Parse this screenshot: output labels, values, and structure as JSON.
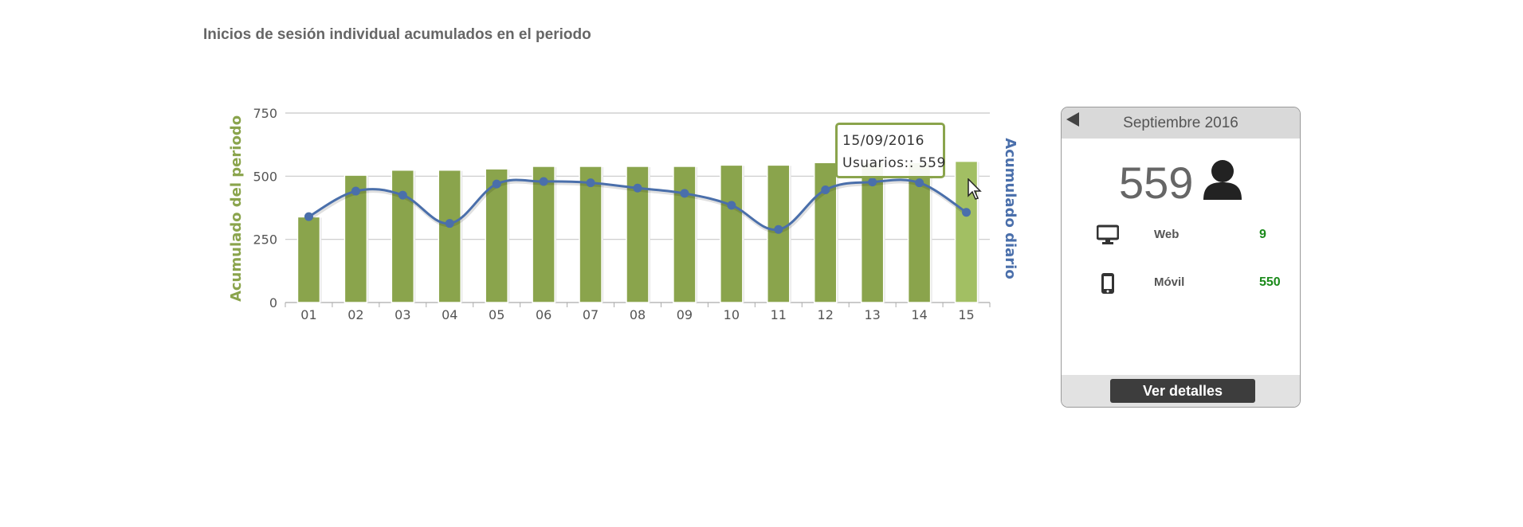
{
  "page": {
    "title": "Inicios de sesión individual acumulados en el periodo"
  },
  "chart_data": {
    "type": "bar",
    "categories": [
      "01",
      "02",
      "03",
      "04",
      "05",
      "06",
      "07",
      "08",
      "09",
      "10",
      "11",
      "12",
      "13",
      "14",
      "15"
    ],
    "series": [
      {
        "name": "Acumulado del periodo",
        "type": "bar",
        "axis": "left",
        "values": [
          339,
          504,
          524,
          524,
          529,
          539,
          539,
          539,
          539,
          544,
          544,
          554,
          554,
          554,
          559
        ]
      },
      {
        "name": "Acumulado diario",
        "type": "line",
        "axis": "right",
        "values": [
          340,
          441,
          425,
          313,
          469,
          479,
          474,
          453,
          432,
          385,
          289,
          446,
          477,
          474,
          357
        ]
      }
    ],
    "ylabel": "Acumulado del periodo",
    "ylabel_right": "Acumulado diario",
    "yticks": [
      0,
      250,
      500,
      750
    ],
    "ylim": [
      0,
      750
    ],
    "grid": true,
    "legend": "none",
    "colors": {
      "bar": "#8aa44c",
      "bar_highlight": "#a2bf63",
      "line": "#4a6fab"
    },
    "tooltip": {
      "date": "15/09/2016",
      "text": "Usuarios:: 559"
    }
  },
  "summary_card": {
    "month": "Septiembre 2016",
    "total": "559",
    "rows": [
      {
        "icon": "monitor-icon",
        "label": "Web",
        "value": "9"
      },
      {
        "icon": "mobile-phone-icon",
        "label": "Móvil",
        "value": "550"
      }
    ],
    "details_button": "Ver detalles"
  }
}
